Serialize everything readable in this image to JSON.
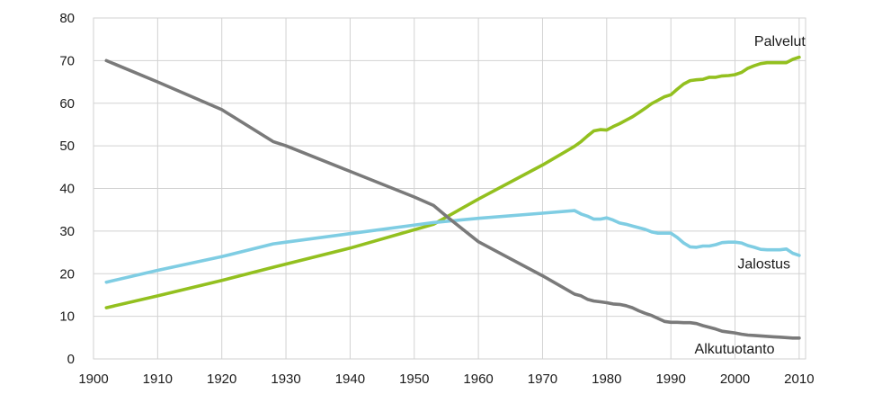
{
  "chart_data": {
    "type": "line",
    "title": "",
    "xlabel": "",
    "ylabel": "",
    "xlim": [
      1900,
      2011
    ],
    "ylim": [
      0,
      80
    ],
    "xticks": [
      1900,
      1910,
      1920,
      1930,
      1940,
      1950,
      1960,
      1970,
      1980,
      1990,
      2000,
      2010
    ],
    "yticks": [
      0,
      10,
      20,
      30,
      40,
      50,
      60,
      70,
      80
    ],
    "grid": true,
    "legend": "none",
    "series": [
      {
        "name": "Palvelut",
        "color": "#93c01f",
        "points": [
          [
            1902,
            12
          ],
          [
            1910,
            14.8
          ],
          [
            1920,
            18.4
          ],
          [
            1928,
            21.5
          ],
          [
            1940,
            26
          ],
          [
            1953,
            31.6
          ],
          [
            1960,
            37.5
          ],
          [
            1970,
            45.5
          ],
          [
            1975,
            49.9
          ],
          [
            1976,
            51
          ],
          [
            1977,
            52.3
          ],
          [
            1978,
            53.5
          ],
          [
            1979,
            53.8
          ],
          [
            1980,
            53.7
          ],
          [
            1981,
            54.5
          ],
          [
            1982,
            55.2
          ],
          [
            1983,
            56
          ],
          [
            1984,
            56.8
          ],
          [
            1985,
            57.8
          ],
          [
            1986,
            58.8
          ],
          [
            1987,
            59.9
          ],
          [
            1988,
            60.7
          ],
          [
            1989,
            61.5
          ],
          [
            1990,
            62
          ],
          [
            1991,
            63.3
          ],
          [
            1992,
            64.5
          ],
          [
            1993,
            65.3
          ],
          [
            1994,
            65.5
          ],
          [
            1995,
            65.6
          ],
          [
            1996,
            66.1
          ],
          [
            1997,
            66.1
          ],
          [
            1998,
            66.4
          ],
          [
            1999,
            66.5
          ],
          [
            2000,
            66.7
          ],
          [
            2001,
            67.2
          ],
          [
            2002,
            68.2
          ],
          [
            2003,
            68.8
          ],
          [
            2004,
            69.3
          ],
          [
            2005,
            69.5
          ],
          [
            2006,
            69.5
          ],
          [
            2007,
            69.5
          ],
          [
            2008,
            69.5
          ],
          [
            2009,
            70.3
          ],
          [
            2010,
            70.8
          ]
        ]
      },
      {
        "name": "Jalostus",
        "color": "#7fcde3",
        "points": [
          [
            1902,
            18
          ],
          [
            1910,
            20.8
          ],
          [
            1920,
            24
          ],
          [
            1928,
            27
          ],
          [
            1930,
            27.4
          ],
          [
            1940,
            29.4
          ],
          [
            1953,
            32
          ],
          [
            1960,
            33
          ],
          [
            1970,
            34.2
          ],
          [
            1975,
            34.8
          ],
          [
            1976,
            34
          ],
          [
            1977,
            33.5
          ],
          [
            1978,
            32.8
          ],
          [
            1979,
            32.8
          ],
          [
            1980,
            33.1
          ],
          [
            1981,
            32.6
          ],
          [
            1982,
            31.9
          ],
          [
            1983,
            31.6
          ],
          [
            1984,
            31.2
          ],
          [
            1985,
            30.8
          ],
          [
            1986,
            30.4
          ],
          [
            1987,
            29.8
          ],
          [
            1988,
            29.5
          ],
          [
            1989,
            29.5
          ],
          [
            1990,
            29.5
          ],
          [
            1991,
            28.5
          ],
          [
            1992,
            27.2
          ],
          [
            1993,
            26.3
          ],
          [
            1994,
            26.2
          ],
          [
            1995,
            26.5
          ],
          [
            1996,
            26.5
          ],
          [
            1997,
            26.8
          ],
          [
            1998,
            27.3
          ],
          [
            1999,
            27.4
          ],
          [
            2000,
            27.4
          ],
          [
            2001,
            27.2
          ],
          [
            2002,
            26.6
          ],
          [
            2003,
            26.2
          ],
          [
            2004,
            25.7
          ],
          [
            2005,
            25.6
          ],
          [
            2006,
            25.6
          ],
          [
            2007,
            25.6
          ],
          [
            2008,
            25.8
          ],
          [
            2009,
            24.8
          ],
          [
            2010,
            24.3
          ]
        ]
      },
      {
        "name": "Alkutuotanto",
        "color": "#7a7a7a",
        "points": [
          [
            1902,
            70
          ],
          [
            1910,
            65
          ],
          [
            1920,
            58.5
          ],
          [
            1928,
            51
          ],
          [
            1930,
            50
          ],
          [
            1940,
            44
          ],
          [
            1950,
            38
          ],
          [
            1953,
            36
          ],
          [
            1955,
            33.5
          ],
          [
            1960,
            27.5
          ],
          [
            1965,
            23.5
          ],
          [
            1970,
            19.5
          ],
          [
            1975,
            15.2
          ],
          [
            1976,
            14.8
          ],
          [
            1977,
            14
          ],
          [
            1978,
            13.6
          ],
          [
            1979,
            13.4
          ],
          [
            1980,
            13.2
          ],
          [
            1981,
            12.9
          ],
          [
            1982,
            12.8
          ],
          [
            1983,
            12.5
          ],
          [
            1984,
            12
          ],
          [
            1985,
            11.3
          ],
          [
            1986,
            10.7
          ],
          [
            1987,
            10.2
          ],
          [
            1988,
            9.5
          ],
          [
            1989,
            8.8
          ],
          [
            1990,
            8.6
          ],
          [
            1991,
            8.6
          ],
          [
            1992,
            8.5
          ],
          [
            1993,
            8.5
          ],
          [
            1994,
            8.3
          ],
          [
            1995,
            7.8
          ],
          [
            1996,
            7.4
          ],
          [
            1997,
            7
          ],
          [
            1998,
            6.5
          ],
          [
            1999,
            6.3
          ],
          [
            2000,
            6.1
          ],
          [
            2001,
            5.8
          ],
          [
            2002,
            5.6
          ],
          [
            2003,
            5.5
          ],
          [
            2004,
            5.4
          ],
          [
            2005,
            5.3
          ],
          [
            2006,
            5.2
          ],
          [
            2007,
            5.1
          ],
          [
            2008,
            5
          ],
          [
            2009,
            4.9
          ],
          [
            2010,
            4.9
          ]
        ]
      }
    ],
    "annotations": [
      {
        "text": "Palvelut",
        "series": "Palvelut",
        "at": [
          2003,
          73.5
        ],
        "anchor": "start"
      },
      {
        "text": "Jalostus",
        "series": "Jalostus",
        "at": [
          2000.4,
          21.2
        ],
        "anchor": "start"
      },
      {
        "text": "Alkutuotanto",
        "series": "Alkutuotanto",
        "at": [
          1993.7,
          1.3
        ],
        "anchor": "start"
      }
    ]
  }
}
